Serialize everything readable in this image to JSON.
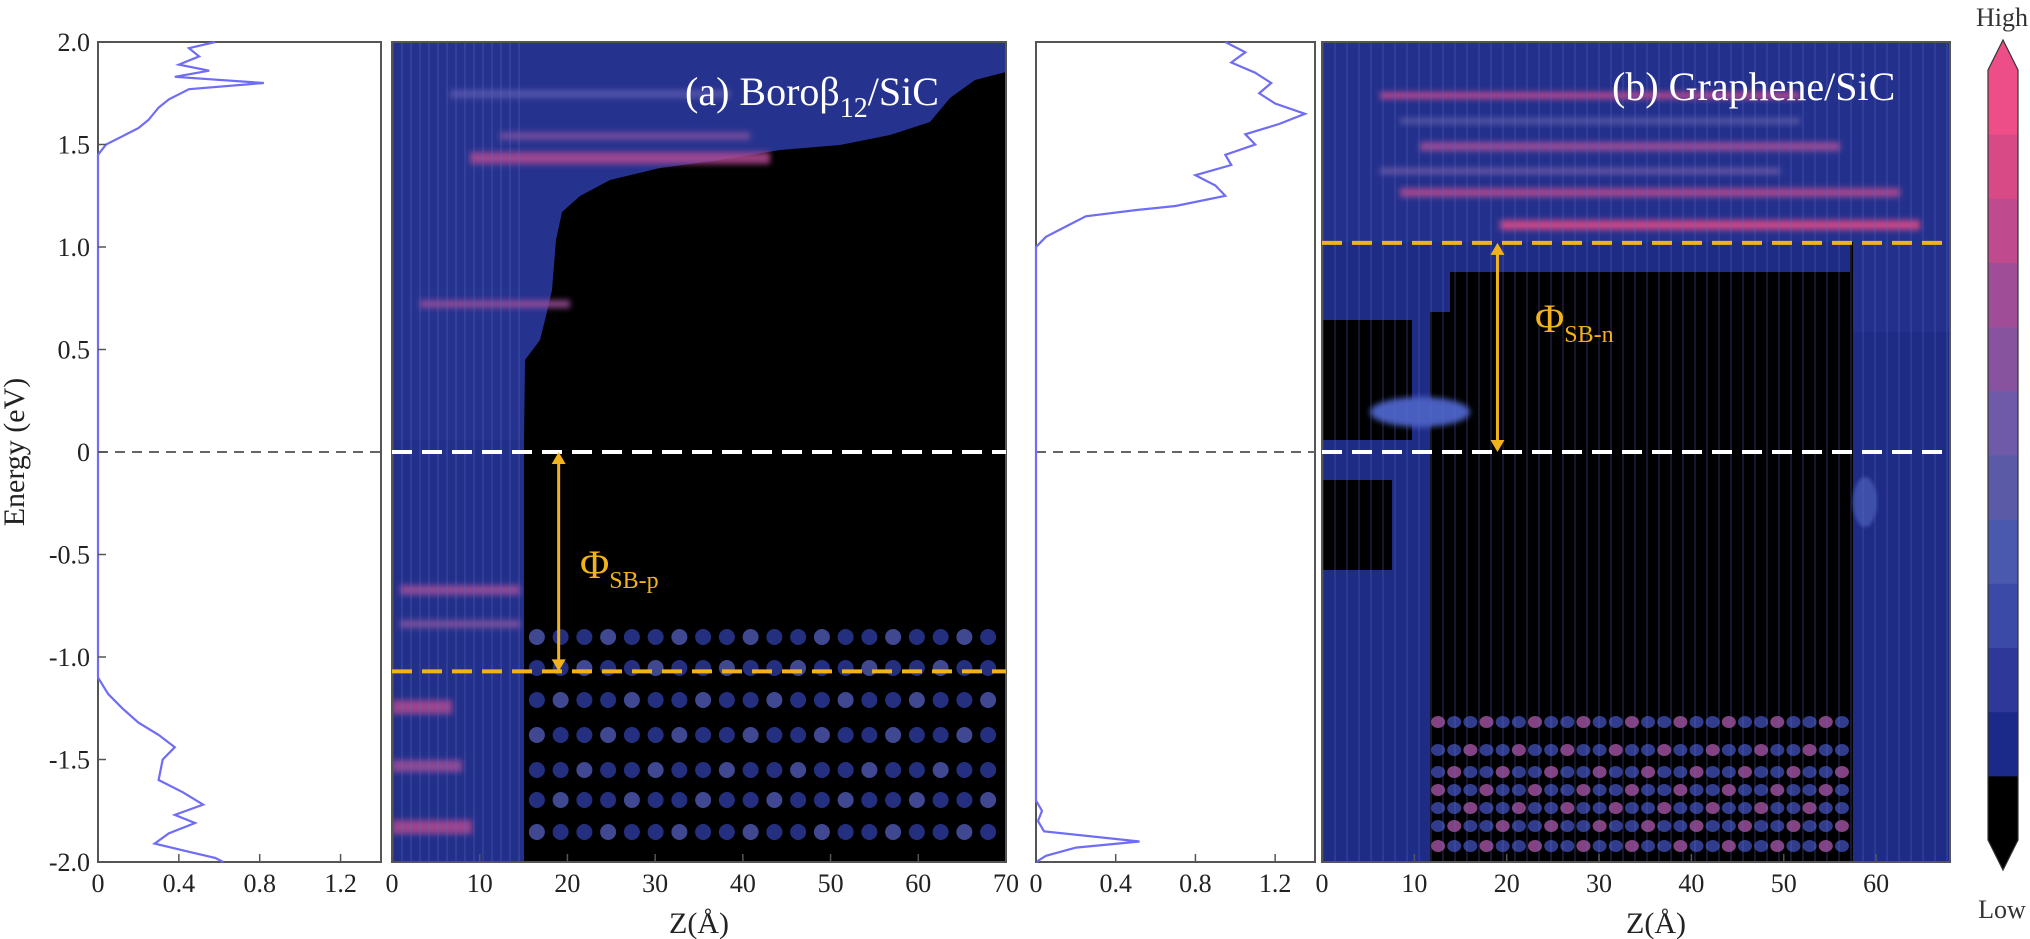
{
  "chart_data": [
    {
      "type": "line",
      "panel": "(a) DOS",
      "xlim": [
        0,
        1.4
      ],
      "ylim": [
        -2.0,
        2.0
      ],
      "xticks": [
        "0",
        "0.4",
        "0.8",
        "1.2"
      ],
      "ylabel": "Energy (eV)",
      "yticks": [
        "2.0",
        "1.5",
        "1.0",
        "0.5",
        "0",
        "-0.5",
        "-1.0",
        "-1.5",
        "-2.0"
      ],
      "line_color": "#6f6cf5",
      "fermi_level": 0,
      "points": [
        [
          0.58,
          2.0
        ],
        [
          0.45,
          1.97
        ],
        [
          0.5,
          1.93
        ],
        [
          0.4,
          1.89
        ],
        [
          0.55,
          1.86
        ],
        [
          0.38,
          1.83
        ],
        [
          0.82,
          1.8
        ],
        [
          0.45,
          1.77
        ],
        [
          0.35,
          1.72
        ],
        [
          0.3,
          1.68
        ],
        [
          0.25,
          1.62
        ],
        [
          0.2,
          1.58
        ],
        [
          0.12,
          1.54
        ],
        [
          0.04,
          1.5
        ],
        [
          0.0,
          1.45
        ],
        [
          0.0,
          -1.1
        ],
        [
          0.05,
          -1.18
        ],
        [
          0.12,
          -1.25
        ],
        [
          0.2,
          -1.32
        ],
        [
          0.3,
          -1.38
        ],
        [
          0.38,
          -1.44
        ],
        [
          0.32,
          -1.5
        ],
        [
          0.3,
          -1.6
        ],
        [
          0.42,
          -1.66
        ],
        [
          0.52,
          -1.72
        ],
        [
          0.38,
          -1.77
        ],
        [
          0.48,
          -1.81
        ],
        [
          0.35,
          -1.86
        ],
        [
          0.28,
          -1.91
        ],
        [
          0.45,
          -1.95
        ],
        [
          0.58,
          -1.98
        ],
        [
          0.62,
          -2.0
        ]
      ]
    },
    {
      "type": "heatmap",
      "panel": "(a)",
      "title": "(a) Boroβ",
      "title_sub": "12",
      "title_suffix": "/SiC",
      "xlabel": "Z(Å)",
      "xlim": [
        0,
        70
      ],
      "ylim": [
        -2.0,
        2.0
      ],
      "xticks": [
        "0",
        "10",
        "20",
        "30",
        "40",
        "50",
        "60",
        "70"
      ],
      "fermi_level": 0,
      "band_edge": -1.07,
      "arrow_z": 19,
      "barrier_label": "Φ",
      "barrier_sub": "SB-p"
    },
    {
      "type": "line",
      "panel": "(b) DOS",
      "xlim": [
        0,
        1.4
      ],
      "ylim": [
        -2.0,
        2.0
      ],
      "xticks": [
        "0",
        "0.4",
        "0.8",
        "1.2"
      ],
      "line_color": "#6f6cf5",
      "fermi_level": 0,
      "points": [
        [
          0.95,
          2.0
        ],
        [
          1.05,
          1.95
        ],
        [
          0.98,
          1.9
        ],
        [
          1.1,
          1.85
        ],
        [
          1.18,
          1.8
        ],
        [
          1.12,
          1.75
        ],
        [
          1.2,
          1.7
        ],
        [
          1.35,
          1.65
        ],
        [
          1.22,
          1.6
        ],
        [
          1.05,
          1.55
        ],
        [
          1.1,
          1.5
        ],
        [
          0.95,
          1.45
        ],
        [
          0.98,
          1.4
        ],
        [
          0.8,
          1.35
        ],
        [
          0.9,
          1.3
        ],
        [
          0.95,
          1.25
        ],
        [
          0.7,
          1.2
        ],
        [
          0.5,
          1.18
        ],
        [
          0.25,
          1.15
        ],
        [
          0.15,
          1.1
        ],
        [
          0.05,
          1.05
        ],
        [
          0.0,
          1.0
        ],
        [
          0.0,
          -1.7
        ],
        [
          0.03,
          -1.75
        ],
        [
          0.01,
          -1.8
        ],
        [
          0.04,
          -1.85
        ],
        [
          0.52,
          -1.9
        ],
        [
          0.2,
          -1.93
        ],
        [
          0.05,
          -1.97
        ],
        [
          0.0,
          -2.0
        ]
      ]
    },
    {
      "type": "heatmap",
      "panel": "(b)",
      "title": "(b) Graphene/SiC",
      "xlabel": "Z(Å)",
      "xlim": [
        0,
        68
      ],
      "ylim": [
        -2.0,
        2.0
      ],
      "xticks": [
        "0",
        "10",
        "20",
        "30",
        "40",
        "50",
        "60"
      ],
      "fermi_level": 0,
      "band_edge": 1.02,
      "arrow_z": 19,
      "barrier_label": "Φ",
      "barrier_sub": "SB-n"
    }
  ],
  "colorbar": {
    "top_label": "High",
    "bottom_label": "Low",
    "colors": [
      "#000000",
      "#1b2a88",
      "#2e3899",
      "#3a4aa6",
      "#4a58ad",
      "#5a5aa6",
      "#6e5aa8",
      "#88539e",
      "#a04d98",
      "#bf4a8e",
      "#d84a86",
      "#ee4e88"
    ]
  }
}
